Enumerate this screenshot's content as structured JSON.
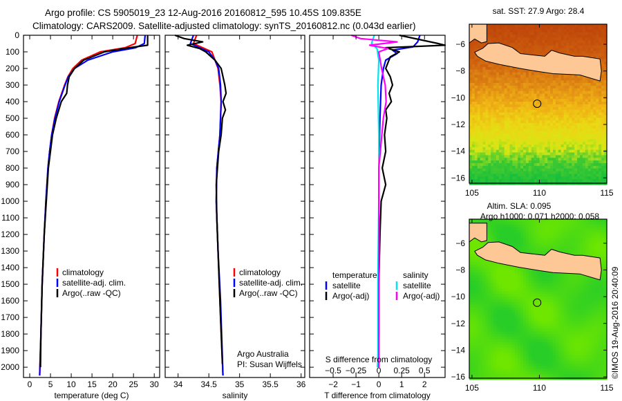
{
  "header": {
    "line1": "Argo profile: CS 5905019_23 12-Aug-2016 20160812_595 10.45S 109.835E",
    "line2": "Climatology: CARS2009. Satellite-adjusted climatology: synTS_20160812.nc (0.043d earlier)"
  },
  "credit": "©IMOS 19-Aug-2016 20:40:09",
  "chart_data": [
    {
      "type": "line",
      "name": "temperature-profile",
      "xlabel": "temperature (deg C)",
      "ylabel": "depth",
      "xlim": [
        -1.5,
        31.3
      ],
      "ylim": [
        2062,
        0
      ],
      "xticks": [
        0,
        5,
        10,
        15,
        20,
        25,
        30
      ],
      "yticks": [
        0,
        100,
        200,
        300,
        400,
        500,
        600,
        700,
        800,
        900,
        1000,
        1100,
        1200,
        1300,
        1400,
        1500,
        1600,
        1700,
        1800,
        1900,
        2000
      ],
      "legend": [
        "climatology",
        "satellite-adj. clim.",
        "Argo(..raw -QC)"
      ],
      "series": [
        {
          "name": "climatology",
          "color": "#ff0000",
          "depth": [
            0,
            50,
            75,
            100,
            150,
            200,
            250,
            300,
            400,
            500,
            600,
            700,
            800,
            1000,
            1200,
            1500,
            1800,
            2050
          ],
          "values": [
            25.9,
            25.4,
            23,
            17,
            12.5,
            10.4,
            9.2,
            8.4,
            7.0,
            6.0,
            5.3,
            4.8,
            4.4,
            3.9,
            3.5,
            3.0,
            2.7,
            2.4
          ]
        },
        {
          "name": "satellite-adj. clim.",
          "color": "#0000ff",
          "depth": [
            0,
            50,
            75,
            100,
            150,
            200,
            250,
            300,
            400,
            500,
            600,
            700,
            800,
            1000,
            1200,
            1500,
            1800,
            2050
          ],
          "values": [
            27.8,
            27.6,
            25.5,
            20,
            14,
            10.8,
            9.3,
            8.5,
            7.1,
            6.1,
            5.3,
            4.8,
            4.4,
            3.9,
            3.5,
            3.0,
            2.7,
            2.4
          ]
        },
        {
          "name": "Argo(..raw -QC)",
          "color": "#000000",
          "depth": [
            0,
            60,
            75,
            100,
            150,
            200,
            250,
            300,
            350,
            400,
            500,
            600,
            800,
            1000,
            1200,
            1500,
            1800,
            2000
          ],
          "values": [
            28.4,
            28.4,
            24,
            18,
            13,
            10.8,
            9.5,
            9.1,
            8.9,
            7.6,
            6.4,
            5.5,
            4.5,
            4.0,
            3.5,
            3.0,
            2.7,
            2.6
          ]
        }
      ]
    },
    {
      "type": "line",
      "name": "salinity-profile",
      "xlabel": "salinity",
      "xlim": [
        33.79,
        36.06
      ],
      "ylim": [
        2062,
        0
      ],
      "xticks": [
        34,
        34.5,
        35,
        35.5,
        36
      ],
      "legend": [
        "climatology",
        "satellite-adj. clim.",
        "Argo(..raw -QC)"
      ],
      "annotations": [
        "Argo Australia",
        "PI: Susan Wijffels"
      ],
      "series": [
        {
          "name": "climatology",
          "color": "#ff0000",
          "depth": [
            0,
            50,
            100,
            150,
            200,
            300,
            400,
            600,
            800,
            1000,
            1300,
            1600,
            2050
          ],
          "values": [
            34.3,
            34.25,
            34.55,
            34.6,
            34.65,
            34.68,
            34.7,
            34.68,
            34.63,
            34.62,
            34.65,
            34.68,
            34.73
          ]
        },
        {
          "name": "satellite-adj. clim.",
          "color": "#0000ff",
          "depth": [
            0,
            50,
            100,
            150,
            200,
            300,
            400,
            600,
            800,
            1000,
            1300,
            1600,
            2050
          ],
          "values": [
            34.25,
            34.2,
            34.5,
            34.6,
            34.66,
            34.69,
            34.7,
            34.68,
            34.63,
            34.62,
            34.65,
            34.69,
            34.73
          ]
        },
        {
          "name": "Argo(..raw -QC)",
          "color": "#000000",
          "depth": [
            0,
            20,
            40,
            60,
            80,
            100,
            150,
            200,
            300,
            350,
            400,
            450,
            500,
            600,
            700,
            900,
            1100,
            1400,
            1700,
            1980
          ],
          "values": [
            33.95,
            34.1,
            34.4,
            34.15,
            34.35,
            34.45,
            34.6,
            34.7,
            34.76,
            34.78,
            34.73,
            34.77,
            34.72,
            34.7,
            34.66,
            34.62,
            34.63,
            34.66,
            34.69,
            34.72
          ]
        }
      ]
    },
    {
      "type": "line",
      "name": "difference-profile",
      "xlabel": "T difference from climatology",
      "x2label": "S difference from climatology",
      "xlim": [
        -3.03,
        2.9
      ],
      "x2lim": [
        -0.757,
        0.725
      ],
      "ylim": [
        2062,
        0
      ],
      "xticks": [
        -2,
        -1,
        0,
        1,
        2
      ],
      "x2ticks": [
        -0.5,
        -0.25,
        0,
        0.25,
        0.5
      ],
      "legend_headers": [
        "temperature",
        "salinity"
      ],
      "series": [
        {
          "name": "temperature satellite",
          "color": "#0000ff",
          "depth": [
            0,
            40,
            70,
            90,
            110,
            150,
            200,
            300,
            500,
            800,
            1200,
            1600,
            2000
          ],
          "values": [
            1.8,
            1.7,
            1.5,
            0.6,
            0.8,
            0.3,
            0.2,
            0.1,
            0.05,
            0.0,
            0.0,
            0.0,
            0.0
          ]
        },
        {
          "name": "temperature Argo(-adj)",
          "color": "#000000",
          "depth": [
            0,
            50,
            60,
            75,
            100,
            130,
            200,
            250,
            300,
            350,
            400,
            450,
            500,
            600,
            700,
            800,
            900,
            1000,
            1200,
            1500,
            1800,
            2000
          ],
          "values": [
            0.9,
            2.6,
            2.9,
            0.3,
            0.9,
            0.5,
            0.3,
            0.5,
            0.6,
            0.45,
            0.55,
            0.3,
            0.35,
            0.25,
            0.3,
            0.15,
            0.3,
            0.1,
            0.05,
            0.0,
            0.0,
            -0.05
          ]
        },
        {
          "name": "salinity satellite",
          "color": "#00e5ee",
          "depth": [
            0,
            50,
            80,
            150,
            300,
            600,
            1000,
            1500,
            2000
          ],
          "values": [
            -0.05,
            -0.08,
            -0.02,
            0.0,
            -0.01,
            0.0,
            0.0,
            -0.01,
            -0.01
          ]
        },
        {
          "name": "salinity Argo(-adj)",
          "color": "#ff00ff",
          "depth": [
            0,
            20,
            40,
            60,
            80,
            100,
            200,
            300,
            400,
            500,
            800,
            1200,
            1600,
            2000
          ],
          "values": [
            -0.3,
            -0.2,
            0.2,
            -0.1,
            0.1,
            0.0,
            0.03,
            0.07,
            0.08,
            0.05,
            0.0,
            0.0,
            0.0,
            0.0
          ]
        }
      ]
    },
    {
      "type": "heatmap",
      "name": "sst-map",
      "title": "sat. SST: 27.9 Argo: 28.4",
      "xlim": [
        104.8,
        115
      ],
      "ylim": [
        -16.4,
        -4.5
      ],
      "xticks": [
        105,
        110,
        115
      ],
      "yticks": [
        -6,
        -8,
        -10,
        -12,
        -14,
        -16
      ],
      "marker": {
        "lon": 109.835,
        "lat": -10.45
      }
    },
    {
      "type": "heatmap",
      "name": "sla-map",
      "title": "Altim. SLA: 0.095",
      "subtitle": "Argo h1000: 0.071 h2000: 0.058",
      "xlim": [
        104.8,
        115
      ],
      "ylim": [
        -16.1,
        -4.2
      ],
      "xticks": [
        105,
        110,
        115
      ],
      "yticks": [
        -6,
        -8,
        -10,
        -12,
        -14,
        -16
      ],
      "marker": {
        "lon": 109.835,
        "lat": -10.45
      }
    }
  ]
}
